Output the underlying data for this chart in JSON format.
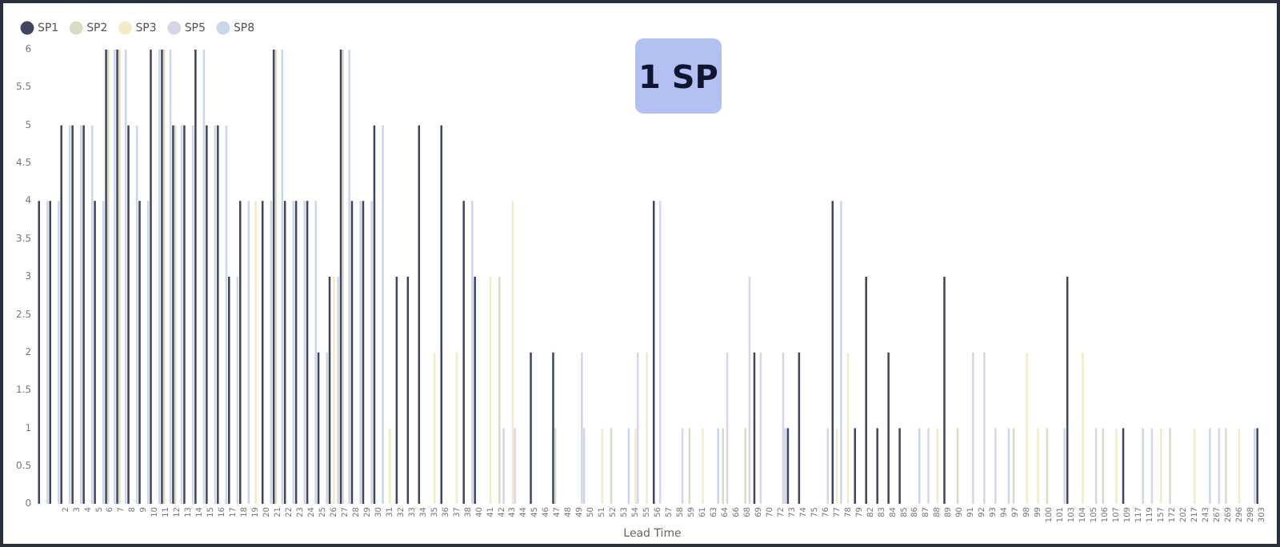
{
  "chart_data": {
    "type": "bar",
    "title": "1 SP",
    "xlabel": "Lead Time",
    "categories": [
      null,
      null,
      "2",
      "3",
      "4",
      "5",
      "6",
      "7",
      "8",
      "9",
      "10",
      "11",
      "12",
      "13",
      "14",
      "15",
      "16",
      "17",
      "18",
      "19",
      "20",
      "21",
      "22",
      "23",
      "24",
      "25",
      "26",
      "27",
      "28",
      "29",
      "30",
      "31",
      "32",
      "33",
      "34",
      "35",
      "36",
      "37",
      "38",
      "40",
      "41",
      "42",
      "43",
      "44",
      "45",
      "46",
      "47",
      "48",
      "49",
      "50",
      "51",
      "52",
      "53",
      "54",
      "55",
      "56",
      "57",
      "58",
      "59",
      "61",
      "63",
      "64",
      "66",
      "68",
      "69",
      "70",
      "72",
      "73",
      "74",
      "75",
      "76",
      "77",
      "78",
      "79",
      "82",
      "83",
      "84",
      "85",
      "86",
      "87",
      "88",
      "89",
      "90",
      "91",
      "92",
      "93",
      "94",
      "97",
      "98",
      "99",
      "100",
      "101",
      "103",
      "104",
      "105",
      "106",
      "107",
      "109",
      "117",
      "119",
      "157",
      "172",
      "202",
      "217",
      "243",
      "267",
      "269",
      "296",
      "298",
      "303"
    ],
    "series": [
      {
        "name": "SP1",
        "color": "#3f465e",
        "values": [
          4,
          4,
          5,
          5,
          5,
          4,
          6,
          6,
          5,
          4,
          6,
          6,
          5,
          5,
          6,
          5,
          5,
          3,
          4,
          null,
          4,
          6,
          4,
          4,
          4,
          2,
          3,
          6,
          4,
          4,
          5,
          null,
          3,
          3,
          5,
          null,
          5,
          null,
          4,
          3,
          null,
          null,
          null,
          null,
          2,
          null,
          2,
          null,
          null,
          null,
          null,
          null,
          null,
          null,
          null,
          4,
          null,
          null,
          null,
          null,
          null,
          null,
          null,
          null,
          2,
          null,
          null,
          1,
          2,
          null,
          null,
          4,
          null,
          1,
          3,
          1,
          2,
          1,
          null,
          null,
          null,
          3,
          null,
          null,
          null,
          null,
          null,
          null,
          null,
          null,
          null,
          null,
          3,
          null,
          null,
          null,
          null,
          1,
          null,
          null,
          null,
          null,
          null,
          null,
          null,
          null,
          null,
          null,
          null,
          1
        ]
      },
      {
        "name": "SP2",
        "color": "#d8dcc2",
        "values": [
          null,
          null,
          null,
          null,
          null,
          null,
          6,
          6,
          null,
          null,
          null,
          6,
          5,
          null,
          null,
          null,
          null,
          null,
          null,
          null,
          null,
          6,
          null,
          null,
          null,
          null,
          null,
          6,
          null,
          null,
          null,
          null,
          null,
          null,
          null,
          null,
          null,
          null,
          null,
          null,
          null,
          3,
          null,
          null,
          null,
          null,
          1,
          null,
          null,
          null,
          null,
          1,
          null,
          null,
          null,
          null,
          null,
          null,
          1,
          null,
          null,
          1,
          null,
          1,
          null,
          null,
          null,
          null,
          null,
          null,
          null,
          null,
          null,
          null,
          null,
          null,
          null,
          null,
          null,
          null,
          null,
          null,
          1,
          null,
          null,
          null,
          null,
          1,
          null,
          null,
          1,
          null,
          null,
          null,
          null,
          1,
          null,
          null,
          null,
          null,
          null,
          1,
          null,
          null,
          null,
          null,
          1,
          null,
          null,
          null
        ]
      },
      {
        "name": "SP3",
        "color": "#f1ebc8",
        "values": [
          null,
          null,
          null,
          null,
          null,
          null,
          null,
          null,
          null,
          null,
          null,
          null,
          null,
          null,
          null,
          null,
          null,
          null,
          null,
          4,
          null,
          null,
          null,
          null,
          null,
          null,
          3,
          null,
          null,
          null,
          null,
          1,
          null,
          null,
          null,
          2,
          null,
          2,
          null,
          null,
          3,
          null,
          4,
          null,
          null,
          null,
          null,
          null,
          null,
          null,
          1,
          null,
          null,
          1,
          2,
          null,
          null,
          null,
          null,
          1,
          null,
          null,
          null,
          null,
          null,
          null,
          null,
          null,
          null,
          null,
          null,
          1,
          2,
          null,
          null,
          null,
          null,
          null,
          null,
          null,
          1,
          null,
          null,
          null,
          null,
          null,
          null,
          null,
          2,
          1,
          null,
          null,
          null,
          2,
          null,
          null,
          1,
          null,
          null,
          null,
          1,
          null,
          null,
          1,
          null,
          null,
          null,
          1,
          null,
          null
        ]
      },
      {
        "name": "SP5",
        "color": "#d9d4e8",
        "values": [
          null,
          null,
          null,
          null,
          null,
          null,
          null,
          null,
          null,
          null,
          null,
          null,
          null,
          null,
          null,
          null,
          null,
          null,
          null,
          null,
          null,
          null,
          null,
          null,
          null,
          null,
          null,
          null,
          null,
          null,
          null,
          null,
          null,
          null,
          null,
          null,
          null,
          null,
          null,
          null,
          null,
          1,
          1,
          null,
          null,
          null,
          null,
          null,
          2,
          null,
          null,
          null,
          null,
          2,
          null,
          4,
          null,
          1,
          null,
          null,
          null,
          2,
          null,
          3,
          2,
          null,
          2,
          null,
          null,
          null,
          1,
          null,
          null,
          null,
          null,
          null,
          null,
          null,
          null,
          1,
          null,
          null,
          null,
          2,
          2,
          1,
          null,
          null,
          null,
          null,
          null,
          null,
          null,
          null,
          1,
          null,
          null,
          null,
          null,
          1,
          null,
          null,
          null,
          null,
          null,
          1,
          null,
          null,
          null,
          null
        ]
      },
      {
        "name": "SP8",
        "color": "#c9d7ea",
        "values": [
          4,
          4,
          5,
          5,
          5,
          4,
          6,
          6,
          5,
          4,
          6,
          6,
          5,
          5,
          6,
          5,
          5,
          3,
          4,
          null,
          4,
          6,
          4,
          4,
          4,
          2,
          3,
          6,
          4,
          4,
          5,
          null,
          null,
          null,
          null,
          null,
          null,
          null,
          4,
          null,
          null,
          null,
          null,
          null,
          null,
          null,
          null,
          null,
          1,
          null,
          null,
          null,
          1,
          null,
          null,
          null,
          null,
          null,
          null,
          null,
          1,
          null,
          null,
          null,
          null,
          null,
          1,
          null,
          null,
          null,
          null,
          4,
          null,
          null,
          null,
          null,
          null,
          null,
          1,
          null,
          null,
          null,
          null,
          null,
          null,
          null,
          1,
          null,
          null,
          null,
          null,
          1,
          null,
          null,
          null,
          null,
          null,
          null,
          1,
          null,
          null,
          null,
          null,
          null,
          1,
          null,
          null,
          null,
          1,
          null
        ]
      }
    ],
    "ylim": [
      0,
      6
    ],
    "yticks": [
      0,
      0.5,
      1,
      1.5,
      2,
      2.5,
      3,
      3.5,
      4,
      4.5,
      5,
      5.5,
      6
    ],
    "grid": false,
    "legend": "top left"
  }
}
